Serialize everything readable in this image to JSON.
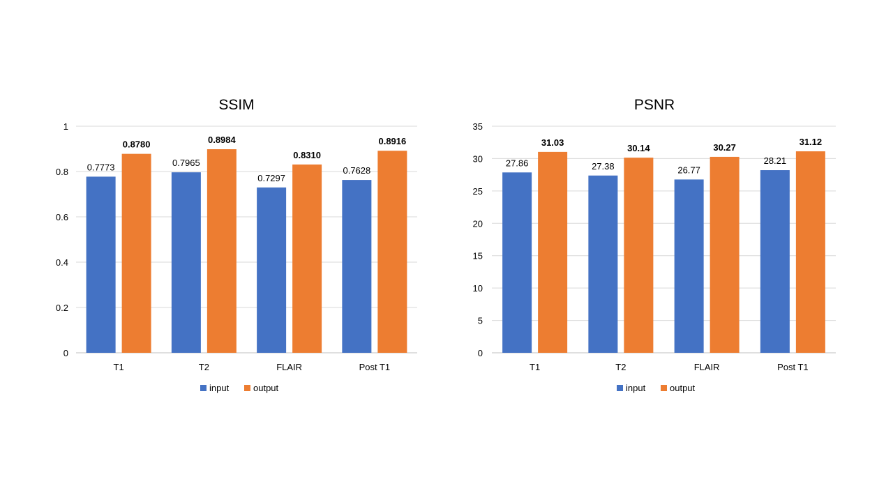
{
  "chart_data": [
    {
      "type": "bar",
      "title": "SSIM",
      "categories": [
        "T1",
        "T2",
        "FLAIR",
        "Post T1"
      ],
      "series": [
        {
          "name": "input",
          "values": [
            0.7773,
            0.7965,
            0.7297,
            0.7628
          ],
          "color": "#4472C4",
          "labels": [
            "0.7773",
            "0.7965",
            "0.7297",
            "0.7628"
          ],
          "label_bold": false
        },
        {
          "name": "output",
          "values": [
            0.878,
            0.8984,
            0.831,
            0.8916
          ],
          "color": "#ED7D31",
          "labels": [
            "0.8780",
            "0.8984",
            "0.8310",
            "0.8916"
          ],
          "label_bold": true
        }
      ],
      "ylim": [
        0,
        1
      ],
      "yticks": [
        0,
        0.2,
        0.4,
        0.6,
        0.8,
        1
      ],
      "ytick_labels": [
        "0",
        "0.2",
        "0.4",
        "0.6",
        "0.8",
        "1"
      ],
      "grid": true,
      "legend": "bottom"
    },
    {
      "type": "bar",
      "title": "PSNR",
      "categories": [
        "T1",
        "T2",
        "FLAIR",
        "Post T1"
      ],
      "series": [
        {
          "name": "input",
          "values": [
            27.86,
            27.38,
            26.77,
            28.21
          ],
          "color": "#4472C4",
          "labels": [
            "27.86",
            "27.38",
            "26.77",
            "28.21"
          ],
          "label_bold": false
        },
        {
          "name": "output",
          "values": [
            31.03,
            30.14,
            30.27,
            31.12
          ],
          "color": "#ED7D31",
          "labels": [
            "31.03",
            "30.14",
            "30.27",
            "31.12"
          ],
          "label_bold": true
        }
      ],
      "ylim": [
        0,
        35
      ],
      "yticks": [
        0,
        5,
        10,
        15,
        20,
        25,
        30,
        35
      ],
      "ytick_labels": [
        "0",
        "5",
        "10",
        "15",
        "20",
        "25",
        "30",
        "35"
      ],
      "grid": true,
      "legend": "bottom"
    }
  ]
}
